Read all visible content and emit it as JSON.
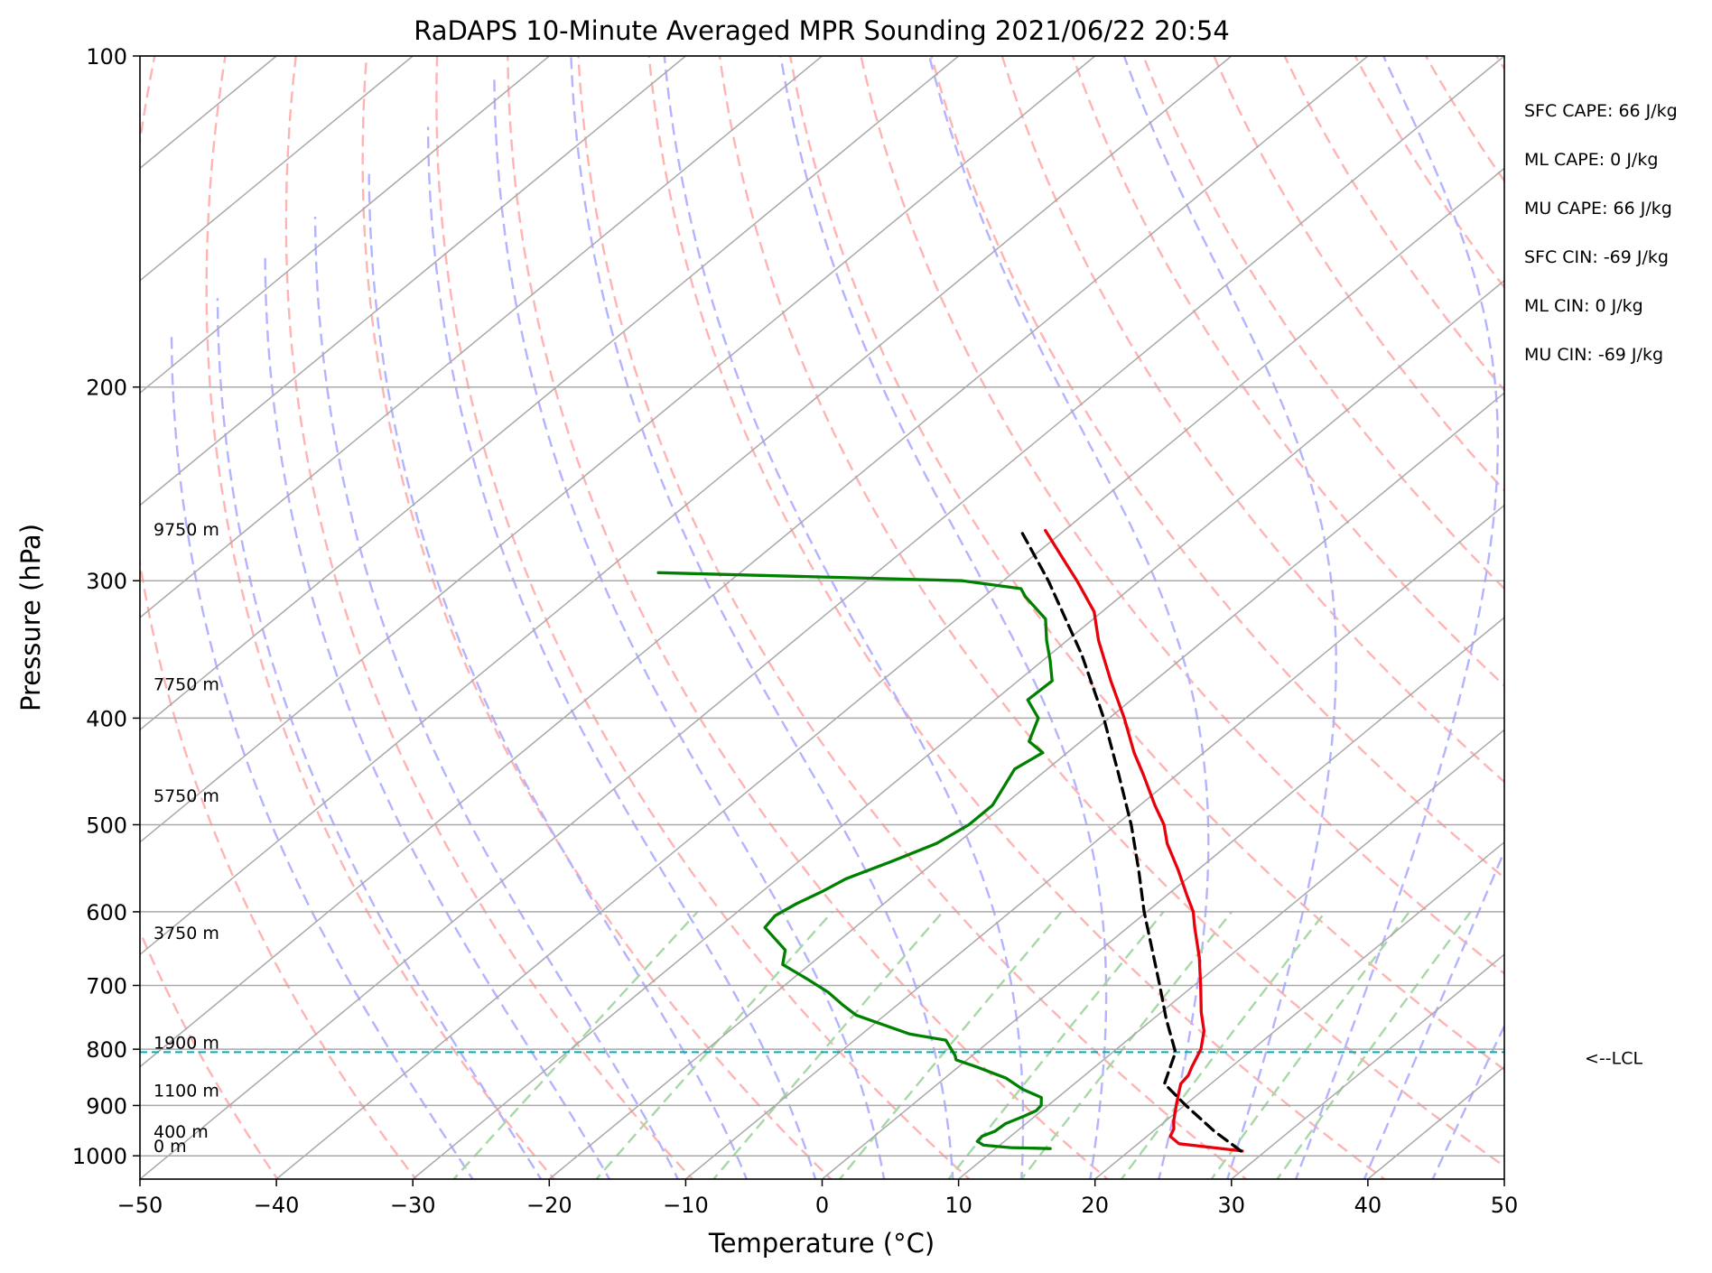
{
  "chart_data": {
    "type": "line",
    "title": "RaDAPS 10-Minute Averaged MPR Sounding 2021/06/22 20:54",
    "xlabel": "Temperature (°C)",
    "ylabel": "Pressure (hPa)",
    "xlim": [
      -50,
      50
    ],
    "ylim": [
      1050,
      100
    ],
    "y_scale": "log",
    "grid": true,
    "x_ticks": [
      -50,
      -40,
      -30,
      -20,
      -10,
      0,
      10,
      20,
      30,
      40,
      50
    ],
    "x_tick_labels": [
      "−50",
      "−40",
      "−30",
      "−20",
      "−10",
      "0",
      "10",
      "20",
      "30",
      "40",
      "50"
    ],
    "y_ticks": [
      100,
      200,
      300,
      400,
      500,
      600,
      700,
      800,
      900,
      1000
    ],
    "y_tick_labels": [
      "100",
      "200",
      "300",
      "400",
      "500",
      "600",
      "700",
      "800",
      "900",
      "1000"
    ],
    "skew": 1.0,
    "series": [
      {
        "role": "temperature",
        "color": "#e8000b",
        "points": [
          {
            "p": 990,
            "t": 28.3
          },
          {
            "p": 975,
            "t": 23.0
          },
          {
            "p": 960,
            "t": 21.7
          },
          {
            "p": 945,
            "t": 21.3
          },
          {
            "p": 930,
            "t": 20.6
          },
          {
            "p": 900,
            "t": 19.4
          },
          {
            "p": 880,
            "t": 18.6
          },
          {
            "p": 860,
            "t": 17.8
          },
          {
            "p": 845,
            "t": 17.6
          },
          {
            "p": 830,
            "t": 17.1
          },
          {
            "p": 800,
            "t": 16.2
          },
          {
            "p": 770,
            "t": 14.8
          },
          {
            "p": 740,
            "t": 12.9
          },
          {
            "p": 700,
            "t": 10.5
          },
          {
            "p": 660,
            "t": 7.9
          },
          {
            "p": 620,
            "t": 4.9
          },
          {
            "p": 600,
            "t": 3.4
          },
          {
            "p": 580,
            "t": 1.5
          },
          {
            "p": 550,
            "t": -1.4
          },
          {
            "p": 520,
            "t": -4.6
          },
          {
            "p": 500,
            "t": -6.5
          },
          {
            "p": 480,
            "t": -8.9
          },
          {
            "p": 450,
            "t": -12.5
          },
          {
            "p": 430,
            "t": -15.1
          },
          {
            "p": 400,
            "t": -18.9
          },
          {
            "p": 370,
            "t": -23.2
          },
          {
            "p": 340,
            "t": -27.7
          },
          {
            "p": 320,
            "t": -30.6
          },
          {
            "p": 300,
            "t": -34.6
          },
          {
            "p": 290,
            "t": -36.8
          },
          {
            "p": 270,
            "t": -41.4
          }
        ]
      },
      {
        "role": "dewpoint",
        "color": "#008000",
        "points": [
          {
            "p": 985,
            "t": 14.0
          },
          {
            "p": 983,
            "t": 11.0
          },
          {
            "p": 978,
            "t": 8.8
          },
          {
            "p": 970,
            "t": 8.0
          },
          {
            "p": 960,
            "t": 7.9
          },
          {
            "p": 950,
            "t": 8.4
          },
          {
            "p": 935,
            "t": 8.5
          },
          {
            "p": 920,
            "t": 9.2
          },
          {
            "p": 910,
            "t": 9.6
          },
          {
            "p": 900,
            "t": 9.5
          },
          {
            "p": 885,
            "t": 8.8
          },
          {
            "p": 870,
            "t": 6.7
          },
          {
            "p": 850,
            "t": 4.5
          },
          {
            "p": 830,
            "t": 1.3
          },
          {
            "p": 818,
            "t": -0.8
          },
          {
            "p": 810,
            "t": -1.3
          },
          {
            "p": 800,
            "t": -2.1
          },
          {
            "p": 785,
            "t": -3.3
          },
          {
            "p": 775,
            "t": -6.5
          },
          {
            "p": 745,
            "t": -12.1
          },
          {
            "p": 730,
            "t": -13.9
          },
          {
            "p": 710,
            "t": -16.2
          },
          {
            "p": 690,
            "t": -19.0
          },
          {
            "p": 670,
            "t": -22.0
          },
          {
            "p": 650,
            "t": -23.1
          },
          {
            "p": 620,
            "t": -26.6
          },
          {
            "p": 605,
            "t": -26.9
          },
          {
            "p": 590,
            "t": -26.4
          },
          {
            "p": 575,
            "t": -25.6
          },
          {
            "p": 560,
            "t": -25.0
          },
          {
            "p": 540,
            "t": -23.2
          },
          {
            "p": 520,
            "t": -21.5
          },
          {
            "p": 500,
            "t": -20.8
          },
          {
            "p": 480,
            "t": -20.8
          },
          {
            "p": 460,
            "t": -21.7
          },
          {
            "p": 445,
            "t": -22.4
          },
          {
            "p": 430,
            "t": -21.8
          },
          {
            "p": 420,
            "t": -23.8
          },
          {
            "p": 400,
            "t": -25.2
          },
          {
            "p": 385,
            "t": -27.6
          },
          {
            "p": 370,
            "t": -27.5
          },
          {
            "p": 355,
            "t": -29.4
          },
          {
            "p": 340,
            "t": -31.5
          },
          {
            "p": 325,
            "t": -33.5
          },
          {
            "p": 310,
            "t": -37.0
          },
          {
            "p": 305,
            "t": -38.0
          },
          {
            "p": 300,
            "t": -43.0
          },
          {
            "p": 295,
            "t": -66.0
          }
        ]
      },
      {
        "role": "parcel",
        "color": "#000000",
        "dashed": true,
        "points": [
          {
            "p": 990,
            "t": 28.2
          },
          {
            "p": 950,
            "t": 24.5
          },
          {
            "p": 900,
            "t": 20.1
          },
          {
            "p": 860,
            "t": 16.6
          },
          {
            "p": 805,
            "t": 14.6
          },
          {
            "p": 750,
            "t": 10.9
          },
          {
            "p": 700,
            "t": 7.5
          },
          {
            "p": 650,
            "t": 3.8
          },
          {
            "p": 600,
            "t": -0.2
          },
          {
            "p": 550,
            "t": -4.3
          },
          {
            "p": 500,
            "t": -8.9
          },
          {
            "p": 450,
            "t": -14.3
          },
          {
            "p": 400,
            "t": -20.4
          },
          {
            "p": 350,
            "t": -27.7
          },
          {
            "p": 300,
            "t": -36.7
          },
          {
            "p": 270,
            "t": -43.2
          }
        ]
      }
    ],
    "lcl_pressure": 805,
    "lcl_label": "<--LCL",
    "height_labels": [
      {
        "p": 1000,
        "label": "0 m"
      },
      {
        "p": 970,
        "label": "400 m"
      },
      {
        "p": 890,
        "label": "1100 m"
      },
      {
        "p": 805,
        "label": "1900 m"
      },
      {
        "p": 640,
        "label": "3750 m"
      },
      {
        "p": 480,
        "label": "5750 m"
      },
      {
        "p": 380,
        "label": "7750 m"
      },
      {
        "p": 275,
        "label": "9750 m"
      }
    ],
    "indices": [
      "SFC CAPE: 66 J/kg",
      "ML CAPE: 0 J/kg",
      "MU CAPE: 66 J/kg",
      "SFC CIN: -69 J/kg",
      "ML CIN: 0 J/kg",
      "MU CIN: -69 J/kg"
    ],
    "background_lines": {
      "isotherm_color": "#a9a9a9",
      "dry_adiabat_color": "#ffb3b3",
      "moist_adiabat_color": "#b3b3ff",
      "mixing_ratio_color": "#a6d8a6",
      "lcl_color": "#00b0b8"
    }
  }
}
